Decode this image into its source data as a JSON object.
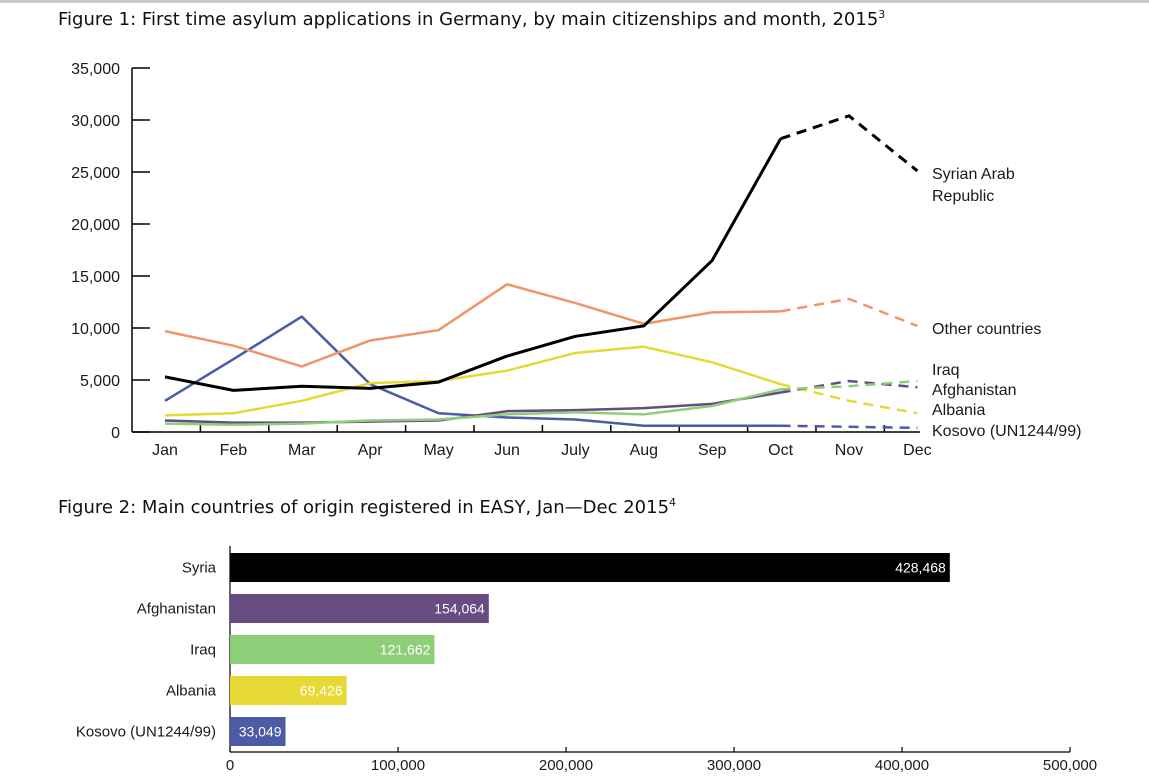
{
  "figure1": {
    "title": "Figure 1: First time asylum applications in Germany, by main citizenships and month, 2015",
    "footnote": "3"
  },
  "figure2": {
    "title": "Figure 2: Main countries of origin registered in EASY, Jan—Dec 2015",
    "footnote": "4"
  },
  "chart_data": [
    {
      "type": "line",
      "x": [
        "Jan",
        "Feb",
        "Mar",
        "Apr",
        "May",
        "Jun",
        "July",
        "Aug",
        "Sep",
        "Oct",
        "Nov",
        "Dec"
      ],
      "ylim": [
        0,
        35000
      ],
      "yticks": [
        0,
        5000,
        10000,
        15000,
        20000,
        25000,
        30000,
        35000
      ],
      "ytick_labels": [
        "0",
        "5,000",
        "10,000",
        "15,000",
        "20,000",
        "25,000",
        "30,000",
        "35,000"
      ],
      "grid": false,
      "legend": "inline labels at right end of lines",
      "dashed_from": "Oct",
      "series": [
        {
          "name": "Syrian Arab Republic",
          "color": "#000000",
          "label_lines": [
            "Syrian Arab",
            "Republic"
          ],
          "values": [
            5300,
            4000,
            4400,
            4200,
            4800,
            7300,
            9200,
            10200,
            16500,
            28200,
            30400,
            25100
          ]
        },
        {
          "name": "Other countries",
          "color": "#f0956a",
          "label_lines": [
            "Other countries"
          ],
          "values": [
            9700,
            8300,
            6300,
            8800,
            9800,
            14200,
            12400,
            10400,
            11500,
            11600,
            12800,
            10200
          ]
        },
        {
          "name": "Iraq",
          "color": "#8dcf78",
          "label_lines": [
            "Iraq"
          ],
          "values": [
            800,
            700,
            800,
            1100,
            1200,
            1700,
            1900,
            1700,
            2500,
            4100,
            4400,
            4900
          ]
        },
        {
          "name": "Afghanistan",
          "color": "#664c80",
          "label_lines": [
            "Afghanistan"
          ],
          "values": [
            1100,
            900,
            900,
            1000,
            1100,
            2000,
            2100,
            2300,
            2700,
            3800,
            4900,
            4300
          ]
        },
        {
          "name": "Albania",
          "color": "#e7d935",
          "label_lines": [
            "Albania"
          ],
          "values": [
            1600,
            1800,
            3000,
            4700,
            4900,
            5900,
            7600,
            8200,
            6700,
            4600,
            3000,
            1800
          ]
        },
        {
          "name": "Kosovo (UN1244/99)",
          "color": "#4b5ba6",
          "label_lines": [
            "Kosovo (UN1244/99)"
          ],
          "values": [
            3000,
            7000,
            11100,
            4600,
            1800,
            1400,
            1200,
            600,
            600,
            600,
            500,
            400
          ]
        }
      ]
    },
    {
      "type": "bar",
      "orientation": "horizontal",
      "categories": [
        "Syria",
        "Afghanistan",
        "Iraq",
        "Albania",
        "Kosovo (UN1244/99)"
      ],
      "values": [
        428468,
        154064,
        121662,
        69426,
        33049
      ],
      "value_labels": [
        "428,468",
        "154,064",
        "121,662",
        "69,426",
        "33,049"
      ],
      "colors": [
        "#000000",
        "#664c80",
        "#8dcf78",
        "#e7d935",
        "#4b5ba6"
      ],
      "xlim": [
        0,
        500000
      ],
      "xticks": [
        0,
        100000,
        200000,
        300000,
        400000,
        500000
      ],
      "xtick_labels": [
        "0",
        "100,000",
        "200,000",
        "300,000",
        "400,000",
        "500,000"
      ],
      "grid": false
    }
  ]
}
